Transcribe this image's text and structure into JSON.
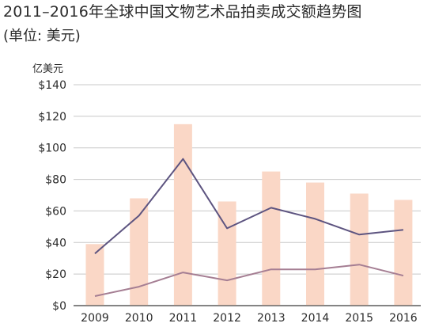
{
  "chart_data": {
    "type": "bar",
    "title": "2011–2016年全球中国文物艺术品拍卖成交额趋势图",
    "subtitle": "(单位: 美元)",
    "ylabel": "亿美元",
    "xlabel": "",
    "categories": [
      "2009",
      "2010",
      "2011",
      "2012",
      "2013",
      "2014",
      "2015",
      "2016"
    ],
    "ylim": [
      0,
      140
    ],
    "yticks": [
      0,
      20,
      40,
      60,
      80,
      100,
      120,
      140
    ],
    "ytick_labels": [
      "$0",
      "$20",
      "$40",
      "$60",
      "$80",
      "$100",
      "$120",
      "$140"
    ],
    "grid": true,
    "legend": "none",
    "series": [
      {
        "type": "bar",
        "color": "#fad7c6",
        "values": [
          39,
          68,
          115,
          66,
          85,
          78,
          71,
          67
        ]
      },
      {
        "type": "line",
        "color": "#5d5480",
        "values": [
          33,
          57,
          93,
          49,
          62,
          55,
          45,
          48
        ]
      },
      {
        "type": "line",
        "color": "#a57e93",
        "values": [
          6,
          12,
          21,
          16,
          23,
          23,
          26,
          19
        ]
      }
    ]
  }
}
